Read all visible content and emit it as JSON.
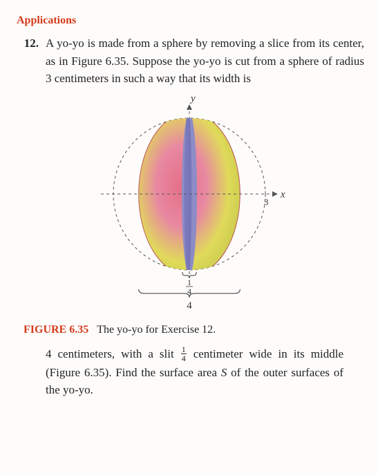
{
  "heading": "Applications",
  "problem_number": "12.",
  "problem_text": "A yo-yo is made from a sphere by removing a slice from its center, as in Figure 6.35. Suppose the yo-yo is cut from a sphere of radius 3 centimeters in such a way that its width is",
  "figure": {
    "r": 110,
    "axis_y": "y",
    "axis_x": "x",
    "radius_tick": "3",
    "slit_num": "1",
    "slit_den": "4",
    "width_label": "4",
    "colors": {
      "grad_left": "#e56f86",
      "grad_mid": "#e888a2",
      "grad_right": "#e0da5a",
      "grad_right2": "#c5c84b",
      "slit": "#8d8cc7",
      "slit_shade": "#6c6ab0",
      "axis": "#555555",
      "label": "#333333"
    }
  },
  "caption_label": "FIGURE 6.35",
  "caption_text": "The yo-yo for Exercise 12.",
  "continuation_pre": "4 centimeters, with a slit ",
  "continuation_frac_num": "1",
  "continuation_frac_den": "4",
  "continuation_post": " centimeter wide in its middle (Figure 6.35). Find the surface area ",
  "continuation_S": "S",
  "continuation_tail": " of the outer surfaces of the yo-yo."
}
